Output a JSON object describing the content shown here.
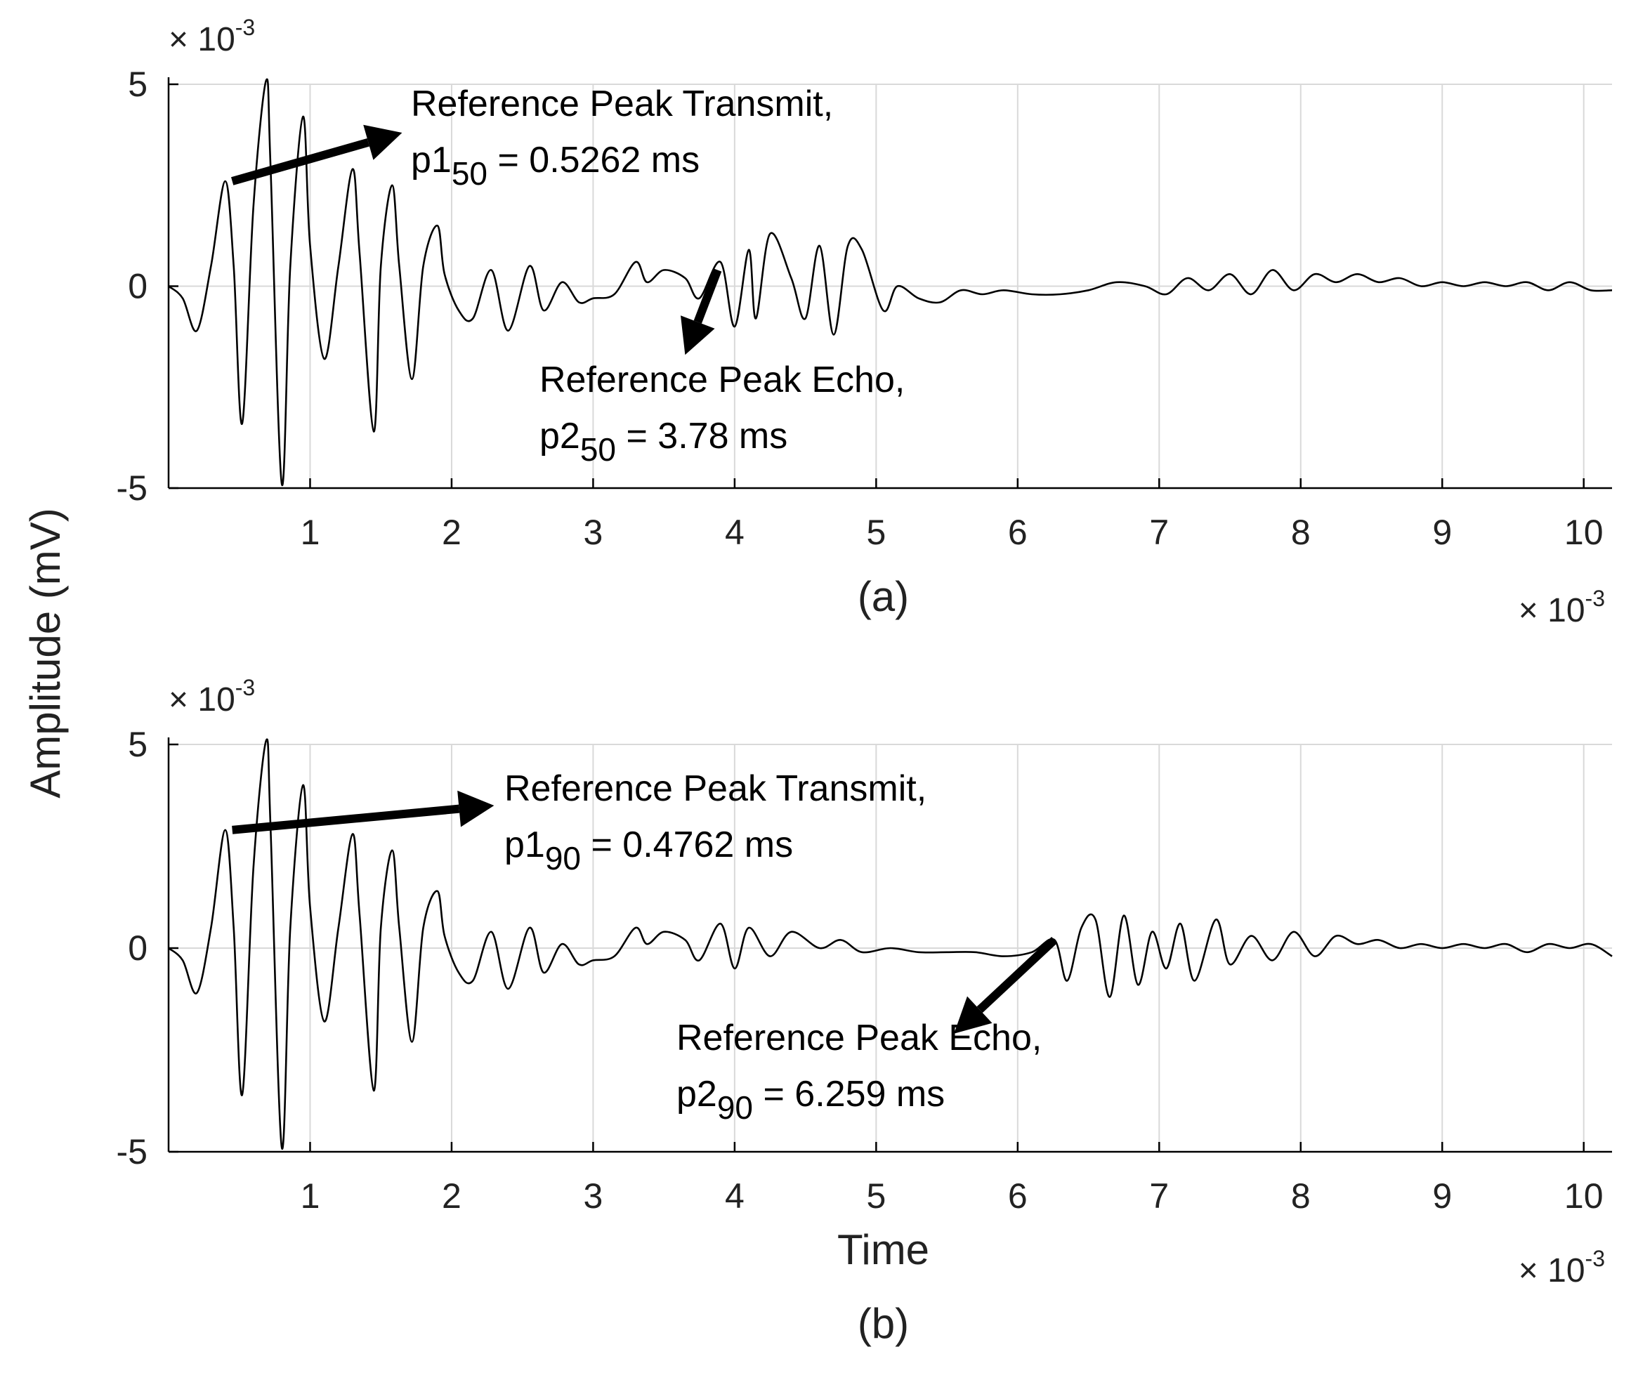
{
  "figure": {
    "ylabel": "Amplitude (mV)",
    "xlabel": "Time"
  },
  "chart_data": [
    {
      "type": "line",
      "panel_label": "(a)",
      "xlabel": "",
      "ylabel": "Amplitude (mV)",
      "x_unit_note": "× 10-3",
      "y_unit_note": "× 10-3",
      "x_exponent": {
        "times": "×",
        "base": "10",
        "exp": "-3"
      },
      "y_exponent": {
        "times": "×",
        "base": "10",
        "exp": "-3"
      },
      "xlim": [
        0,
        10.2
      ],
      "ylim": [
        -5,
        5
      ],
      "xticks": [
        1,
        2,
        3,
        4,
        5,
        6,
        7,
        8,
        9,
        10
      ],
      "xtick_labels": [
        "1",
        "2",
        "3",
        "4",
        "5",
        "6",
        "7",
        "8",
        "9",
        "10"
      ],
      "yticks": [
        5,
        0,
        -5
      ],
      "ytick_labels": [
        "5",
        "0",
        "-5"
      ],
      "grid": true,
      "series": [
        {
          "name": "signal",
          "x": [
            0,
            0.1,
            0.2,
            0.3,
            0.4,
            0.46,
            0.52,
            0.6,
            0.69,
            0.72,
            0.8,
            0.86,
            0.95,
            1.0,
            1.1,
            1.2,
            1.3,
            1.35,
            1.45,
            1.5,
            1.58,
            1.63,
            1.72,
            1.8,
            1.9,
            1.95,
            2.05,
            2.15,
            2.28,
            2.4,
            2.55,
            2.65,
            2.78,
            2.9,
            3.0,
            3.15,
            3.3,
            3.38,
            3.5,
            3.65,
            3.75,
            3.9,
            4.0,
            4.1,
            4.15,
            4.25,
            4.4,
            4.5,
            4.6,
            4.7,
            4.8,
            4.9,
            5.05,
            5.15,
            5.3,
            5.45,
            5.6,
            5.75,
            5.9,
            6.1,
            6.3,
            6.5,
            6.7,
            6.9,
            7.05,
            7.2,
            7.35,
            7.5,
            7.65,
            7.8,
            7.95,
            8.1,
            8.25,
            8.4,
            8.55,
            8.7,
            8.85,
            9.0,
            9.15,
            9.3,
            9.45,
            9.6,
            9.75,
            9.9,
            10.05,
            10.2
          ],
          "values": [
            0,
            -0.3,
            -1.1,
            0.5,
            2.6,
            0.5,
            -3.4,
            2.0,
            5.1,
            3.0,
            -4.9,
            0.5,
            4.2,
            1.0,
            -1.8,
            0.5,
            2.9,
            0.8,
            -3.6,
            0.5,
            2.5,
            0.5,
            -2.3,
            0.5,
            1.5,
            0.3,
            -0.6,
            -0.8,
            0.4,
            -1.1,
            0.5,
            -0.6,
            0.1,
            -0.4,
            -0.3,
            -0.2,
            0.6,
            0.1,
            0.4,
            0.2,
            -0.3,
            0.6,
            -1.0,
            0.9,
            -0.8,
            1.3,
            0.2,
            -0.8,
            1.0,
            -1.2,
            1.0,
            0.9,
            -0.6,
            0.0,
            -0.3,
            -0.4,
            -0.1,
            -0.2,
            -0.1,
            -0.2,
            -0.2,
            -0.1,
            0.1,
            0.0,
            -0.2,
            0.2,
            -0.1,
            0.3,
            -0.2,
            0.4,
            -0.1,
            0.3,
            0.1,
            0.3,
            0.1,
            0.2,
            0.0,
            0.1,
            0.0,
            0.1,
            0.0,
            0.1,
            -0.1,
            0.1,
            -0.1,
            -0.1
          ]
        }
      ],
      "annotations": [
        {
          "name": "transmit",
          "line1": "Reference Peak Transmit,",
          "var": "p1",
          "sub": "50",
          "rest": " = 0.5262 ms",
          "arrow_from": [
            0.45,
            2.6
          ],
          "arrow_to": [
            1.65,
            3.8
          ]
        },
        {
          "name": "echo",
          "line1": "Reference Peak Echo,",
          "var": "p2",
          "sub": "50",
          "rest": " = 3.78 ms",
          "arrow_from": [
            3.88,
            0.4
          ],
          "arrow_to": [
            3.65,
            -1.7
          ]
        }
      ]
    },
    {
      "type": "line",
      "panel_label": "(b)",
      "xlabel": "Time",
      "ylabel": "Amplitude (mV)",
      "x_unit_note": "× 10-3",
      "y_unit_note": "× 10-3",
      "x_exponent": {
        "times": "×",
        "base": "10",
        "exp": "-3"
      },
      "y_exponent": {
        "times": "×",
        "base": "10",
        "exp": "-3"
      },
      "xlim": [
        0,
        10.2
      ],
      "ylim": [
        -5,
        5
      ],
      "xticks": [
        1,
        2,
        3,
        4,
        5,
        6,
        7,
        8,
        9,
        10
      ],
      "xtick_labels": [
        "1",
        "2",
        "3",
        "4",
        "5",
        "6",
        "7",
        "8",
        "9",
        "10"
      ],
      "yticks": [
        5,
        0,
        -5
      ],
      "ytick_labels": [
        "5",
        "0",
        "-5"
      ],
      "grid": true,
      "series": [
        {
          "name": "signal",
          "x": [
            0,
            0.1,
            0.2,
            0.3,
            0.4,
            0.46,
            0.52,
            0.6,
            0.69,
            0.72,
            0.8,
            0.86,
            0.95,
            1.0,
            1.1,
            1.2,
            1.3,
            1.35,
            1.45,
            1.5,
            1.58,
            1.63,
            1.72,
            1.8,
            1.9,
            1.95,
            2.05,
            2.15,
            2.28,
            2.4,
            2.55,
            2.65,
            2.78,
            2.9,
            3.0,
            3.15,
            3.3,
            3.38,
            3.5,
            3.65,
            3.75,
            3.9,
            4.0,
            4.1,
            4.25,
            4.4,
            4.6,
            4.75,
            4.9,
            5.1,
            5.3,
            5.5,
            5.7,
            5.9,
            6.1,
            6.26,
            6.35,
            6.45,
            6.55,
            6.65,
            6.75,
            6.85,
            6.95,
            7.05,
            7.15,
            7.25,
            7.4,
            7.5,
            7.65,
            7.8,
            7.95,
            8.1,
            8.25,
            8.4,
            8.55,
            8.7,
            8.85,
            9.0,
            9.15,
            9.3,
            9.45,
            9.6,
            9.75,
            9.9,
            10.05,
            10.2
          ],
          "values": [
            0,
            -0.3,
            -1.1,
            0.5,
            2.9,
            0.5,
            -3.6,
            2.0,
            5.1,
            3.0,
            -4.9,
            0.5,
            4.0,
            1.0,
            -1.8,
            0.5,
            2.8,
            0.8,
            -3.5,
            0.5,
            2.4,
            0.5,
            -2.3,
            0.5,
            1.4,
            0.3,
            -0.6,
            -0.8,
            0.4,
            -1.0,
            0.5,
            -0.6,
            0.1,
            -0.4,
            -0.3,
            -0.2,
            0.5,
            0.1,
            0.4,
            0.2,
            -0.3,
            0.6,
            -0.5,
            0.5,
            -0.2,
            0.4,
            0.0,
            0.2,
            -0.1,
            0.0,
            -0.1,
            -0.1,
            -0.1,
            -0.2,
            -0.1,
            0.2,
            -0.8,
            0.5,
            0.7,
            -1.2,
            0.8,
            -0.9,
            0.4,
            -0.5,
            0.6,
            -0.8,
            0.7,
            -0.4,
            0.3,
            -0.3,
            0.4,
            -0.2,
            0.3,
            0.1,
            0.2,
            0.0,
            0.1,
            0.0,
            0.1,
            0.0,
            0.1,
            -0.1,
            0.1,
            0.0,
            0.1,
            -0.2
          ]
        }
      ],
      "annotations": [
        {
          "name": "transmit",
          "line1": "Reference Peak Transmit,",
          "var": "p1",
          "sub": "90",
          "rest": " = 0.4762 ms",
          "arrow_from": [
            0.45,
            2.9
          ],
          "arrow_to": [
            2.3,
            3.5
          ]
        },
        {
          "name": "echo",
          "line1": "Reference Peak Echo,",
          "var": "p2",
          "sub": "90",
          "rest": " = 6.259 ms",
          "arrow_from": [
            6.26,
            0.2
          ],
          "arrow_to": [
            5.55,
            -2.1
          ]
        }
      ]
    }
  ]
}
